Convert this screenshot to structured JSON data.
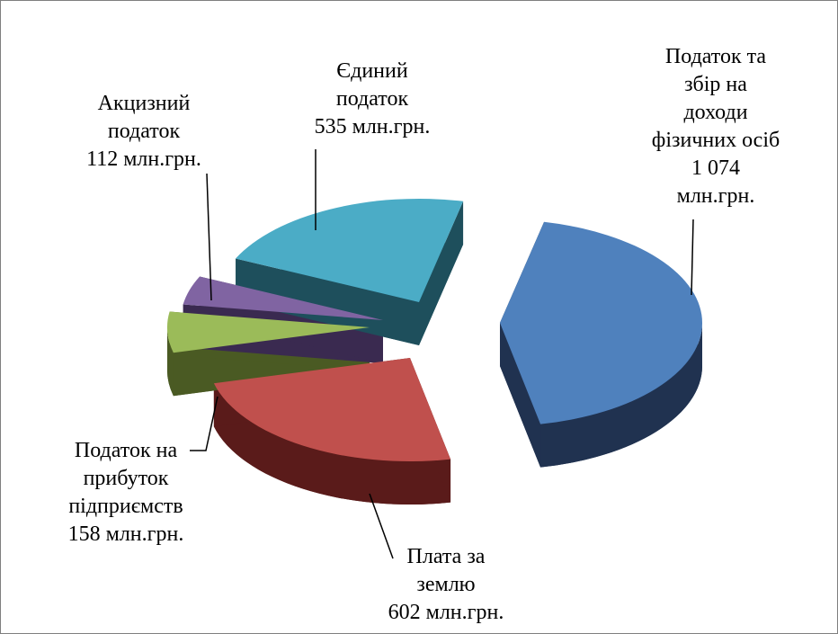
{
  "chart_data": {
    "type": "pie",
    "slices": [
      {
        "label_lines": [
          "Податок та",
          "збір на",
          "доходи",
          "фізичних осіб",
          "1 074",
          "млн.грн."
        ],
        "value": 1074,
        "color": "#4f81bd",
        "dark": "#203250"
      },
      {
        "label_lines": [
          "Плата за",
          "землю",
          "602 млн.грн."
        ],
        "value": 602,
        "color": "#c0504d",
        "dark": "#5a1b1a"
      },
      {
        "label_lines": [
          "Податок на",
          "прибуток",
          "підприємств",
          "158 млн.грн."
        ],
        "value": 158,
        "color": "#9bbb59",
        "dark": "#4a5a23"
      },
      {
        "label_lines": [
          "Акцизний",
          "податок",
          "112 млн.грн."
        ],
        "value": 112,
        "color": "#8064a2",
        "dark": "#3a2a50"
      },
      {
        "label_lines": [
          "Єдиний",
          "податок",
          "535 млн.грн."
        ],
        "value": 535,
        "color": "#4bacc6",
        "dark": "#1e4f5c"
      }
    ]
  }
}
